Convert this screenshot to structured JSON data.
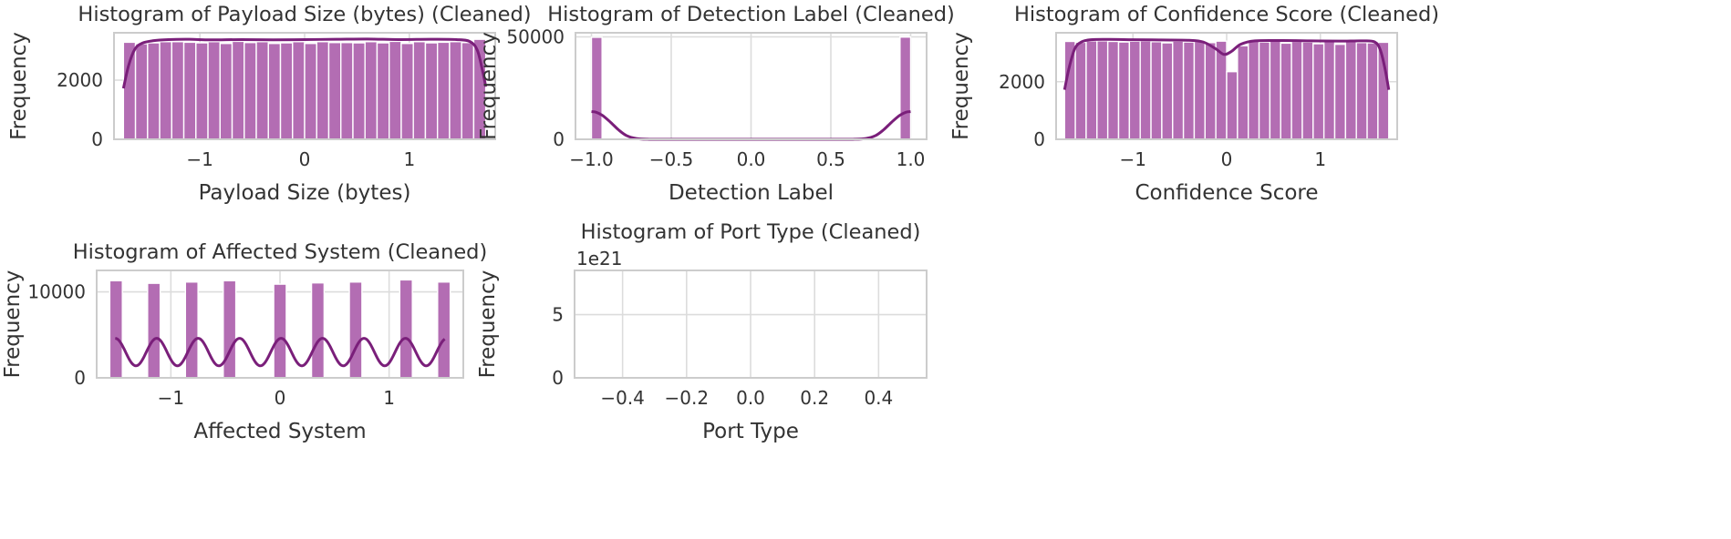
{
  "chart_data": [
    {
      "type": "bar",
      "title": "Histogram of Payload Size (bytes) (Cleaned)",
      "xlabel": "Payload Size (bytes)",
      "ylabel": "Frequency",
      "xlim": [
        -1.82,
        1.82
      ],
      "ylim": [
        0,
        3600
      ],
      "xticks": [
        -1,
        0,
        1
      ],
      "xtick_labels": [
        "−1",
        "0",
        "1"
      ],
      "yticks": [
        0,
        2000
      ],
      "ytick_labels": [
        "0",
        "2000"
      ],
      "bin_range": [
        -1.73,
        1.73
      ],
      "values": [
        3280,
        3230,
        3260,
        3300,
        3300,
        3280,
        3260,
        3300,
        3240,
        3310,
        3270,
        3300,
        3240,
        3260,
        3300,
        3240,
        3300,
        3270,
        3270,
        3260,
        3300,
        3260,
        3310,
        3240,
        3300,
        3260,
        3280,
        3300,
        3270,
        3380
      ],
      "kde": [
        [
          -1.73,
          1720
        ],
        [
          -1.68,
          2500
        ],
        [
          -1.62,
          3050
        ],
        [
          -1.55,
          3250
        ],
        [
          -1.45,
          3330
        ],
        [
          -1.3,
          3370
        ],
        [
          -1.1,
          3380
        ],
        [
          -0.9,
          3360
        ],
        [
          -0.6,
          3370
        ],
        [
          -0.3,
          3360
        ],
        [
          0,
          3370
        ],
        [
          0.3,
          3380
        ],
        [
          0.6,
          3390
        ],
        [
          0.9,
          3370
        ],
        [
          1.2,
          3380
        ],
        [
          1.45,
          3370
        ],
        [
          1.58,
          3300
        ],
        [
          1.65,
          3000
        ],
        [
          1.7,
          2300
        ],
        [
          1.73,
          1780
        ]
      ],
      "grid": true,
      "colors": {
        "bar": "#b36db3",
        "kde": "#7a1f7a"
      }
    },
    {
      "type": "bar",
      "title": "Histogram of Detection Label (Cleaned)",
      "xlabel": "Detection Label",
      "ylabel": "Frequency",
      "xlim": [
        -1.1,
        1.1
      ],
      "ylim": [
        0,
        52000
      ],
      "xticks": [
        -1.0,
        -0.5,
        0.0,
        0.5,
        1.0
      ],
      "xtick_labels": [
        "−1.0",
        "−0.5",
        "0.0",
        "0.5",
        "1.0"
      ],
      "yticks": [
        0,
        50000
      ],
      "ytick_labels": [
        "0",
        "50000"
      ],
      "bin_range": [
        -1.0,
        1.0
      ],
      "values": [
        49800,
        0,
        0,
        0,
        0,
        0,
        0,
        0,
        0,
        0,
        0,
        0,
        0,
        0,
        0,
        0,
        0,
        0,
        0,
        0,
        0,
        0,
        0,
        0,
        0,
        0,
        0,
        0,
        0,
        49900
      ],
      "kde": [
        [
          -1.0,
          13500
        ],
        [
          -0.97,
          13200
        ],
        [
          -0.93,
          11600
        ],
        [
          -0.88,
          8300
        ],
        [
          -0.83,
          4600
        ],
        [
          -0.78,
          1800
        ],
        [
          -0.72,
          400
        ],
        [
          -0.65,
          30
        ],
        [
          -0.5,
          0
        ],
        [
          0.5,
          0
        ],
        [
          0.65,
          30
        ],
        [
          0.72,
          400
        ],
        [
          0.78,
          1800
        ],
        [
          0.83,
          4600
        ],
        [
          0.88,
          8300
        ],
        [
          0.93,
          11600
        ],
        [
          0.97,
          13200
        ],
        [
          1.0,
          13500
        ]
      ],
      "grid": true,
      "colors": {
        "bar": "#b36db3",
        "kde": "#7a1f7a"
      }
    },
    {
      "type": "bar",
      "title": "Histogram of Confidence Score (Cleaned)",
      "xlabel": "Confidence Score",
      "ylabel": "Frequency",
      "xlim": [
        -1.82,
        1.82
      ],
      "ylim": [
        0,
        3700
      ],
      "xticks": [
        -1,
        0,
        1
      ],
      "xtick_labels": [
        "−1",
        "0",
        "1"
      ],
      "yticks": [
        0,
        2000
      ],
      "ytick_labels": [
        "0",
        "2000"
      ],
      "bin_range": [
        -1.73,
        1.73
      ],
      "values": [
        3400,
        3370,
        3420,
        3420,
        3400,
        3380,
        3410,
        3420,
        3390,
        3350,
        3410,
        3380,
        3400,
        3360,
        3410,
        2350,
        3250,
        3420,
        3380,
        3410,
        3340,
        3400,
        3380,
        3320,
        3390,
        3300,
        3410,
        3360,
        3350,
        3370
      ],
      "kde": [
        [
          -1.73,
          1720
        ],
        [
          -1.68,
          2500
        ],
        [
          -1.62,
          3150
        ],
        [
          -1.55,
          3380
        ],
        [
          -1.45,
          3460
        ],
        [
          -1.25,
          3470
        ],
        [
          -1.0,
          3460
        ],
        [
          -0.7,
          3450
        ],
        [
          -0.4,
          3440
        ],
        [
          -0.25,
          3380
        ],
        [
          -0.12,
          3150
        ],
        [
          -0.03,
          2950
        ],
        [
          0.05,
          3050
        ],
        [
          0.15,
          3300
        ],
        [
          0.3,
          3420
        ],
        [
          0.6,
          3430
        ],
        [
          0.9,
          3420
        ],
        [
          1.2,
          3410
        ],
        [
          1.45,
          3420
        ],
        [
          1.58,
          3380
        ],
        [
          1.64,
          3100
        ],
        [
          1.69,
          2450
        ],
        [
          1.73,
          1720
        ]
      ],
      "grid": true,
      "colors": {
        "bar": "#b36db3",
        "kde": "#7a1f7a"
      }
    },
    {
      "type": "bar",
      "title": "Histogram of Affected System (Cleaned)",
      "xlabel": "Affected System",
      "ylabel": "Frequency",
      "xlim": [
        -1.68,
        1.68
      ],
      "ylim": [
        0,
        12500
      ],
      "xticks": [
        -1,
        0,
        1
      ],
      "xtick_labels": [
        "−1",
        "0",
        "1"
      ],
      "yticks": [
        0,
        10000
      ],
      "ytick_labels": [
        "0",
        "10000"
      ],
      "bin_range": [
        -1.56,
        1.56
      ],
      "values": [
        11300,
        0,
        0,
        11000,
        0,
        0,
        11150,
        0,
        0,
        11300,
        0,
        0,
        0,
        10900,
        0,
        0,
        11050,
        0,
        0,
        11150,
        0,
        0,
        0,
        11400,
        0,
        0,
        11150
      ],
      "kde_peaks": [
        -1.51,
        -1.13,
        -0.76,
        -0.38,
        0.0,
        0.38,
        0.76,
        1.13,
        1.51
      ],
      "kde_max": 4600,
      "kde_min": 1400,
      "grid": true,
      "colors": {
        "bar": "#b36db3",
        "kde": "#7a1f7a"
      }
    },
    {
      "type": "bar",
      "title": "Histogram of Port Type (Cleaned)",
      "xlabel": "Port Type",
      "ylabel": "Frequency",
      "offset_label": "1e21",
      "xlim": [
        -0.55,
        0.55
      ],
      "ylim": [
        0,
        8.5
      ],
      "xticks": [
        -0.4,
        -0.2,
        0.0,
        0.2,
        0.4
      ],
      "xtick_labels": [
        "−0.4",
        "−0.2",
        "0.0",
        "0.2",
        "0.4"
      ],
      "yticks": [
        0,
        5
      ],
      "ytick_labels": [
        "0",
        "5"
      ],
      "values": [],
      "grid": true,
      "colors": {
        "bar": "#b36db3",
        "kde": "#7a1f7a"
      }
    }
  ]
}
